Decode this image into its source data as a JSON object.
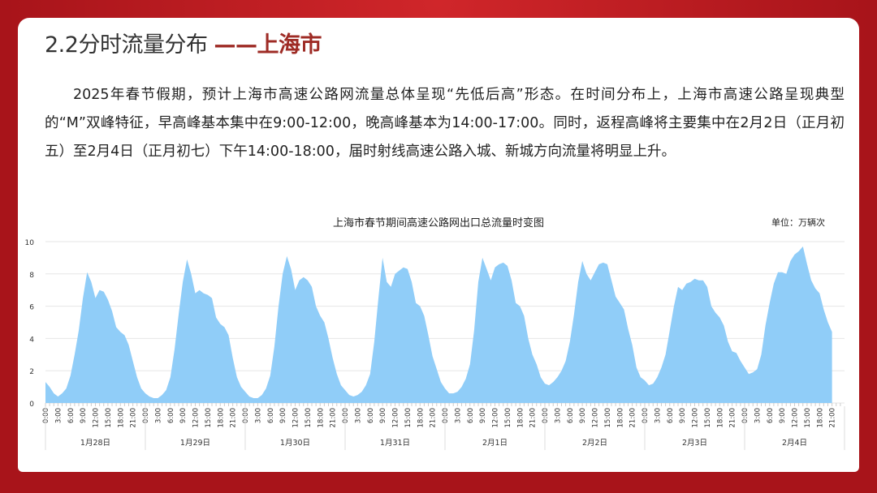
{
  "header": {
    "title_prefix": "2.2分时流量分布",
    "title_dash": "——",
    "title_city": "上海市"
  },
  "paragraph": "2025年春节假期，预计上海市高速公路网流量总体呈现“先低后高”形态。在时间分布上，上海市高速公路呈现典型的“M”双峰特征，早高峰基本集中在9:00-12:00，晚高峰基本为14:00-17:00。同时，返程高峰将主要集中在2月2日（正月初五）至2月4日（正月初七）下午14:00-18:00，届时射线高速公路入城、新城方向流量将明显上升。",
  "chart_data": {
    "type": "area",
    "title": "上海市春节期间高速公路网出口总流量时变图",
    "unit": "单位：万辆次",
    "ylim": [
      0,
      10
    ],
    "yticks": [
      0,
      2,
      4,
      6,
      8,
      10
    ],
    "grid": true,
    "color": "#90cdf8",
    "hour_ticks": [
      "0:00",
      "3:00",
      "6:00",
      "9:00",
      "12:00",
      "15:00",
      "18:00",
      "21:00"
    ],
    "days": [
      "1月28日",
      "1月29日",
      "1月30日",
      "1月31日",
      "2月1日",
      "2月2日",
      "2月3日",
      "2月4日"
    ],
    "hourly_values": [
      [
        1.3,
        1.0,
        0.6,
        0.4,
        0.6,
        0.9,
        1.7,
        3.0,
        4.5,
        6.5,
        8.1,
        7.5,
        6.5,
        7.0,
        6.9,
        6.4,
        5.7,
        4.7,
        4.4,
        4.2,
        3.6,
        2.6,
        1.6,
        0.9
      ],
      [
        0.6,
        0.4,
        0.3,
        0.3,
        0.5,
        0.8,
        1.6,
        3.3,
        5.5,
        7.5,
        8.9,
        8.0,
        6.8,
        7.0,
        6.8,
        6.7,
        6.5,
        5.3,
        4.9,
        4.7,
        4.2,
        2.8,
        1.6,
        1.0
      ],
      [
        0.7,
        0.4,
        0.3,
        0.3,
        0.5,
        0.9,
        1.7,
        3.5,
        6.0,
        8.0,
        9.1,
        8.3,
        7.0,
        7.6,
        7.8,
        7.6,
        7.2,
        6.0,
        5.4,
        5.0,
        4.0,
        2.8,
        1.8,
        1.1
      ],
      [
        0.8,
        0.5,
        0.4,
        0.5,
        0.7,
        1.1,
        1.8,
        3.8,
        6.5,
        9.0,
        7.5,
        7.2,
        8.0,
        8.2,
        8.4,
        8.3,
        7.5,
        6.2,
        6.0,
        5.4,
        4.2,
        2.9,
        2.1,
        1.3
      ],
      [
        0.9,
        0.6,
        0.6,
        0.7,
        1.0,
        1.5,
        2.4,
        4.5,
        7.5,
        9.0,
        8.3,
        7.6,
        8.4,
        8.6,
        8.7,
        8.5,
        7.6,
        6.2,
        6.0,
        5.4,
        4.0,
        3.0,
        2.4,
        1.6
      ],
      [
        1.2,
        1.1,
        1.3,
        1.6,
        2.0,
        2.6,
        3.8,
        5.5,
        7.5,
        8.8,
        8.0,
        7.6,
        8.1,
        8.6,
        8.7,
        8.6,
        7.6,
        6.6,
        6.2,
        5.8,
        4.6,
        3.6,
        2.2,
        1.6
      ],
      [
        1.4,
        1.1,
        1.2,
        1.6,
        2.2,
        3.0,
        4.5,
        6.0,
        7.2,
        7.0,
        7.4,
        7.5,
        7.7,
        7.6,
        7.6,
        7.2,
        6.0,
        5.6,
        5.3,
        4.8,
        3.8,
        3.2,
        3.1,
        2.6
      ],
      [
        2.2,
        1.8,
        1.9,
        2.1,
        3.0,
        4.8,
        6.2,
        7.4,
        8.1,
        8.1,
        8.0,
        8.8,
        9.2,
        9.4,
        9.7,
        8.6,
        7.6,
        7.1,
        6.8,
        5.8,
        5.0,
        4.4
      ]
    ]
  }
}
